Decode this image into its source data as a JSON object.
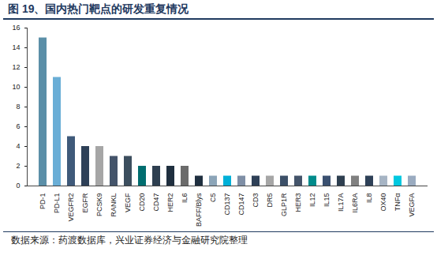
{
  "chart_data": {
    "type": "bar",
    "title": "图 19、国内热门靶点的研发重复情况",
    "source": "数据来源：药渡数据库，兴业证券经济与金融研究院整理",
    "categories": [
      "PD-1",
      "PD-L1",
      "VEGFR2",
      "EGFR",
      "PCSK9",
      "RANKL",
      "VEGF",
      "CD20",
      "CD47",
      "HER2",
      "IL6",
      "BAFF/Blys",
      "C5",
      "CD137",
      "CD147",
      "CD3",
      "DR5",
      "GLP1R",
      "HER3",
      "IL12",
      "IL15",
      "IL17A",
      "IL6RA",
      "IL8",
      "OX40",
      "TNFα",
      "VEGFA"
    ],
    "values": [
      15,
      11,
      5,
      4,
      4,
      3,
      3,
      2,
      2,
      2,
      2,
      1,
      1,
      1,
      1,
      1,
      1,
      1,
      1,
      1,
      1,
      1,
      1,
      1,
      1,
      1,
      1
    ],
    "colors": [
      "#5b8fa8",
      "#6aaed6",
      "#3f5a7a",
      "#2e4057",
      "#a6a6a6",
      "#44546a",
      "#3c4e5e",
      "#006d6f",
      "#2e3f50",
      "#1f2f3f",
      "#6b6b6b",
      "#1f2f3f",
      "#8ca5b8",
      "#00b0d8",
      "#7f8fa6",
      "#2e4057",
      "#a6a6a6",
      "#3c5068",
      "#44546a",
      "#008b8b",
      "#3a5070",
      "#2e3f50",
      "#808080",
      "#2e4057",
      "#a6b4c4",
      "#00c8e0",
      "#9aabc0"
    ],
    "ylim": [
      0,
      16
    ],
    "yticks": [
      0,
      2,
      4,
      6,
      8,
      10,
      12,
      14,
      16
    ],
    "grid": false
  }
}
